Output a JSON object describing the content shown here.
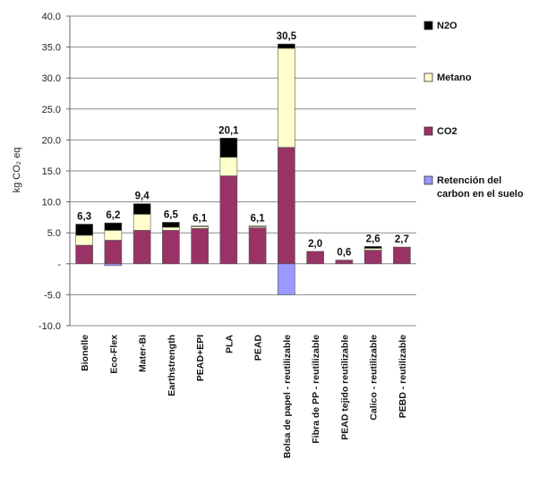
{
  "chart_data": {
    "type": "bar",
    "stacked": true,
    "ylabel": "kg CO₂ eq",
    "ylim": [
      -10,
      40
    ],
    "yticks": [
      "-10.0",
      "-5.0",
      "-",
      "5.0",
      "10.0",
      "15.0",
      "20.0",
      "25.0",
      "30.0",
      "35.0",
      "40.0"
    ],
    "categories": [
      "Bionelle",
      "Eco-Flex",
      "Mater-Bi",
      "Earthstrength",
      "PEAD+EPI",
      "PLA",
      "PEAD",
      "Bolsa de papel - reutilizable",
      "Fibra de PP - reutilizable",
      "PEAD tejido reutilizable",
      "Calico - reutilizable",
      "PEBD - reutilizable"
    ],
    "totals": [
      "6,3",
      "6,2",
      "9,4",
      "6,5",
      "6,1",
      "20,1",
      "6,1",
      "30,5",
      "2,0",
      "0,6",
      "2,6",
      "2,7"
    ],
    "series": [
      {
        "name": "Retención del carbon en el suelo",
        "color": "#9999FF",
        "values": [
          0,
          -0.3,
          0,
          0,
          0,
          0,
          0,
          -5.0,
          0,
          0,
          0,
          0
        ]
      },
      {
        "name": "CO2",
        "color": "#993366",
        "values": [
          3.0,
          3.8,
          5.4,
          5.4,
          5.7,
          14.2,
          5.8,
          18.8,
          2.0,
          0.6,
          2.2,
          2.7
        ]
      },
      {
        "name": "Metano",
        "color": "#FFFFCC",
        "values": [
          1.6,
          1.6,
          2.6,
          0.5,
          0.3,
          3.0,
          0.2,
          16.0,
          0,
          0,
          0.3,
          0
        ]
      },
      {
        "name": "N2O",
        "color": "#000000",
        "values": [
          1.8,
          1.2,
          1.7,
          0.8,
          0.1,
          3.1,
          0.1,
          0.7,
          0,
          0,
          0.3,
          0
        ]
      }
    ],
    "legend_position": "right",
    "legend_order": [
      "N2O",
      "Metano",
      "CO2",
      "Retención del carbon en el suelo"
    ],
    "grid": true
  }
}
